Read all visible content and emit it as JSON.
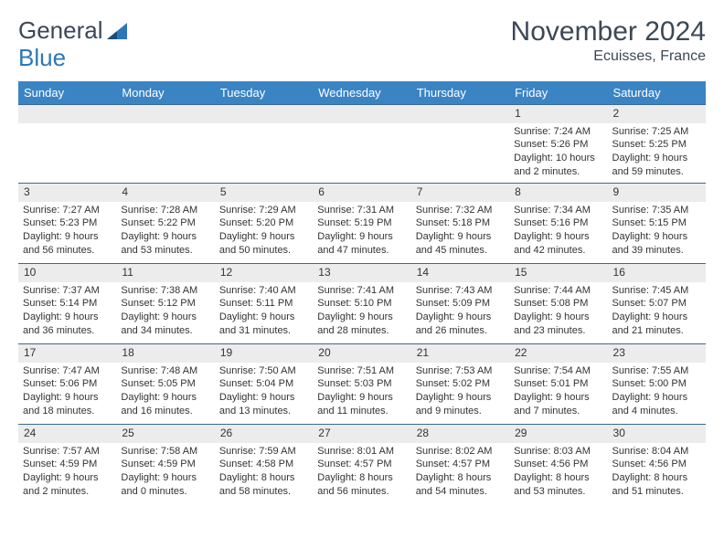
{
  "logo": {
    "text_a": "General",
    "text_b": "Blue"
  },
  "title": "November 2024",
  "location": "Ecuisses, France",
  "colors": {
    "header_bg": "#3b84c4",
    "header_text": "#ffffff",
    "rule": "#3b6a94",
    "daynum_bg": "#ececec",
    "text": "#333333",
    "logo_dark": "#3b4856",
    "logo_blue": "#2f76b8"
  },
  "weekdays": [
    "Sunday",
    "Monday",
    "Tuesday",
    "Wednesday",
    "Thursday",
    "Friday",
    "Saturday"
  ],
  "weeks": [
    [
      {
        "n": "",
        "empty": true
      },
      {
        "n": "",
        "empty": true
      },
      {
        "n": "",
        "empty": true
      },
      {
        "n": "",
        "empty": true
      },
      {
        "n": "",
        "empty": true
      },
      {
        "n": "1",
        "sunrise": "7:24 AM",
        "sunset": "5:26 PM",
        "daylight": "10 hours and 2 minutes."
      },
      {
        "n": "2",
        "sunrise": "7:25 AM",
        "sunset": "5:25 PM",
        "daylight": "9 hours and 59 minutes."
      }
    ],
    [
      {
        "n": "3",
        "sunrise": "7:27 AM",
        "sunset": "5:23 PM",
        "daylight": "9 hours and 56 minutes."
      },
      {
        "n": "4",
        "sunrise": "7:28 AM",
        "sunset": "5:22 PM",
        "daylight": "9 hours and 53 minutes."
      },
      {
        "n": "5",
        "sunrise": "7:29 AM",
        "sunset": "5:20 PM",
        "daylight": "9 hours and 50 minutes."
      },
      {
        "n": "6",
        "sunrise": "7:31 AM",
        "sunset": "5:19 PM",
        "daylight": "9 hours and 47 minutes."
      },
      {
        "n": "7",
        "sunrise": "7:32 AM",
        "sunset": "5:18 PM",
        "daylight": "9 hours and 45 minutes."
      },
      {
        "n": "8",
        "sunrise": "7:34 AM",
        "sunset": "5:16 PM",
        "daylight": "9 hours and 42 minutes."
      },
      {
        "n": "9",
        "sunrise": "7:35 AM",
        "sunset": "5:15 PM",
        "daylight": "9 hours and 39 minutes."
      }
    ],
    [
      {
        "n": "10",
        "sunrise": "7:37 AM",
        "sunset": "5:14 PM",
        "daylight": "9 hours and 36 minutes."
      },
      {
        "n": "11",
        "sunrise": "7:38 AM",
        "sunset": "5:12 PM",
        "daylight": "9 hours and 34 minutes."
      },
      {
        "n": "12",
        "sunrise": "7:40 AM",
        "sunset": "5:11 PM",
        "daylight": "9 hours and 31 minutes."
      },
      {
        "n": "13",
        "sunrise": "7:41 AM",
        "sunset": "5:10 PM",
        "daylight": "9 hours and 28 minutes."
      },
      {
        "n": "14",
        "sunrise": "7:43 AM",
        "sunset": "5:09 PM",
        "daylight": "9 hours and 26 minutes."
      },
      {
        "n": "15",
        "sunrise": "7:44 AM",
        "sunset": "5:08 PM",
        "daylight": "9 hours and 23 minutes."
      },
      {
        "n": "16",
        "sunrise": "7:45 AM",
        "sunset": "5:07 PM",
        "daylight": "9 hours and 21 minutes."
      }
    ],
    [
      {
        "n": "17",
        "sunrise": "7:47 AM",
        "sunset": "5:06 PM",
        "daylight": "9 hours and 18 minutes."
      },
      {
        "n": "18",
        "sunrise": "7:48 AM",
        "sunset": "5:05 PM",
        "daylight": "9 hours and 16 minutes."
      },
      {
        "n": "19",
        "sunrise": "7:50 AM",
        "sunset": "5:04 PM",
        "daylight": "9 hours and 13 minutes."
      },
      {
        "n": "20",
        "sunrise": "7:51 AM",
        "sunset": "5:03 PM",
        "daylight": "9 hours and 11 minutes."
      },
      {
        "n": "21",
        "sunrise": "7:53 AM",
        "sunset": "5:02 PM",
        "daylight": "9 hours and 9 minutes."
      },
      {
        "n": "22",
        "sunrise": "7:54 AM",
        "sunset": "5:01 PM",
        "daylight": "9 hours and 7 minutes."
      },
      {
        "n": "23",
        "sunrise": "7:55 AM",
        "sunset": "5:00 PM",
        "daylight": "9 hours and 4 minutes."
      }
    ],
    [
      {
        "n": "24",
        "sunrise": "7:57 AM",
        "sunset": "4:59 PM",
        "daylight": "9 hours and 2 minutes."
      },
      {
        "n": "25",
        "sunrise": "7:58 AM",
        "sunset": "4:59 PM",
        "daylight": "9 hours and 0 minutes."
      },
      {
        "n": "26",
        "sunrise": "7:59 AM",
        "sunset": "4:58 PM",
        "daylight": "8 hours and 58 minutes."
      },
      {
        "n": "27",
        "sunrise": "8:01 AM",
        "sunset": "4:57 PM",
        "daylight": "8 hours and 56 minutes."
      },
      {
        "n": "28",
        "sunrise": "8:02 AM",
        "sunset": "4:57 PM",
        "daylight": "8 hours and 54 minutes."
      },
      {
        "n": "29",
        "sunrise": "8:03 AM",
        "sunset": "4:56 PM",
        "daylight": "8 hours and 53 minutes."
      },
      {
        "n": "30",
        "sunrise": "8:04 AM",
        "sunset": "4:56 PM",
        "daylight": "8 hours and 51 minutes."
      }
    ]
  ],
  "labels": {
    "sunrise": "Sunrise:",
    "sunset": "Sunset:",
    "daylight": "Daylight:"
  }
}
